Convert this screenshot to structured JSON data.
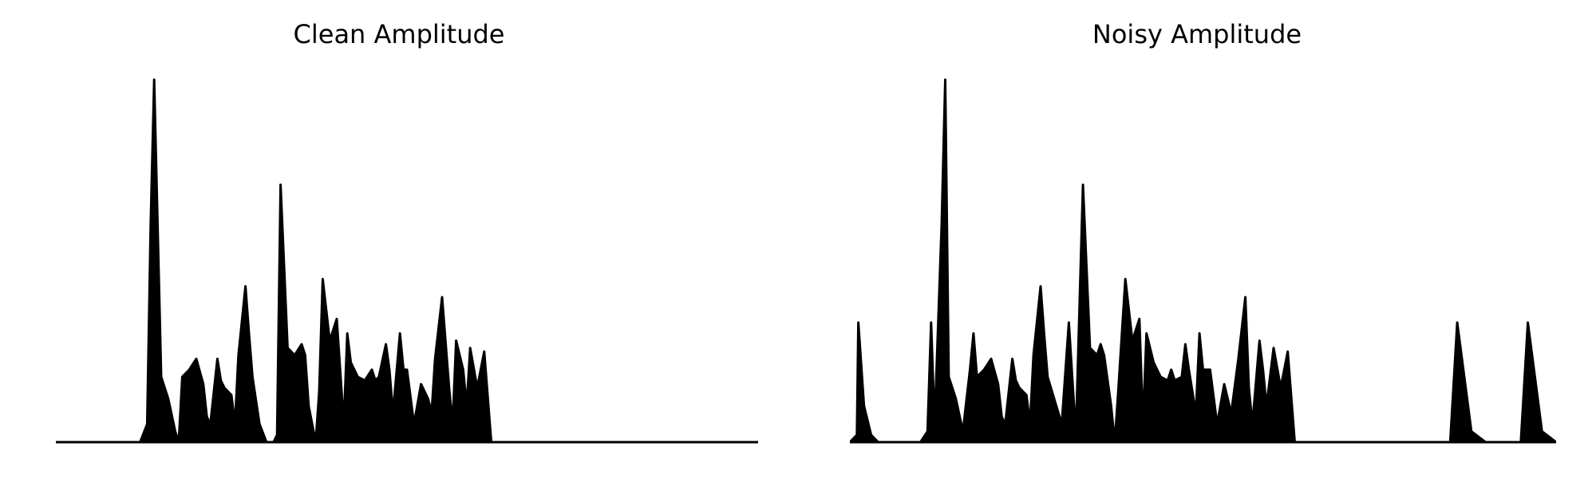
{
  "figure": {
    "layout": "1x2"
  },
  "chart_data": [
    {
      "type": "area",
      "title": "Clean Amplitude",
      "xlabel": "",
      "ylabel": "",
      "axes_visible": false,
      "grid": false,
      "color": "#000000",
      "ylim": [
        0,
        1.0
      ],
      "x": [
        0.0,
        0.12,
        0.13,
        0.135,
        0.14,
        0.15,
        0.16,
        0.17,
        0.175,
        0.18,
        0.19,
        0.2,
        0.21,
        0.215,
        0.22,
        0.23,
        0.235,
        0.24,
        0.25,
        0.255,
        0.26,
        0.27,
        0.275,
        0.28,
        0.29,
        0.3,
        0.31,
        0.315,
        0.32,
        0.33,
        0.34,
        0.35,
        0.355,
        0.36,
        0.37,
        0.375,
        0.38,
        0.39,
        0.4,
        0.41,
        0.415,
        0.42,
        0.43,
        0.44,
        0.45,
        0.455,
        0.46,
        0.47,
        0.475,
        0.48,
        0.49,
        0.495,
        0.5,
        0.51,
        0.52,
        0.53,
        0.535,
        0.54,
        0.55,
        0.56,
        0.565,
        0.57,
        0.58,
        0.585,
        0.59,
        0.6,
        0.61,
        0.62,
        0.63,
        0.635,
        0.64,
        0.65,
        0.66,
        0.665,
        0.67,
        0.68,
        0.69,
        0.695,
        0.7,
        0.71,
        0.72,
        0.73,
        0.74,
        0.75,
        0.76,
        0.77,
        0.78,
        0.79,
        0.8,
        0.9,
        1.0
      ],
      "y": [
        0.0,
        0.0,
        0.05,
        0.6,
        1.0,
        0.18,
        0.12,
        0.03,
        0.0,
        0.18,
        0.2,
        0.23,
        0.16,
        0.07,
        0.05,
        0.23,
        0.17,
        0.15,
        0.13,
        0.05,
        0.24,
        0.43,
        0.3,
        0.18,
        0.05,
        0.0,
        0.0,
        0.02,
        0.71,
        0.26,
        0.24,
        0.27,
        0.24,
        0.1,
        0.0,
        0.14,
        0.45,
        0.28,
        0.34,
        0.05,
        0.3,
        0.22,
        0.18,
        0.17,
        0.2,
        0.17,
        0.18,
        0.27,
        0.2,
        0.08,
        0.3,
        0.2,
        0.2,
        0.05,
        0.16,
        0.12,
        0.08,
        0.23,
        0.4,
        0.15,
        0.05,
        0.28,
        0.2,
        0.1,
        0.26,
        0.15,
        0.25,
        0.0,
        0.0,
        0.0,
        0.0,
        0.0,
        0.0,
        0.0,
        0.0,
        0.0,
        0.0,
        0.0,
        0.0,
        0.0,
        0.0,
        0.0,
        0.0,
        0.0,
        0.0,
        0.0,
        0.0,
        0.0,
        0.0,
        0.0,
        0.0
      ]
    },
    {
      "type": "area",
      "title": "Noisy Amplitude",
      "xlabel": "",
      "ylabel": "",
      "axes_visible": false,
      "grid": false,
      "color": "#000000",
      "ylim": [
        0,
        1.0
      ],
      "x": [
        0.0,
        0.01,
        0.012,
        0.02,
        0.03,
        0.04,
        0.05,
        0.1,
        0.11,
        0.115,
        0.12,
        0.13,
        0.135,
        0.14,
        0.15,
        0.16,
        0.17,
        0.175,
        0.18,
        0.19,
        0.2,
        0.21,
        0.215,
        0.22,
        0.23,
        0.235,
        0.24,
        0.25,
        0.255,
        0.26,
        0.27,
        0.275,
        0.28,
        0.3,
        0.31,
        0.32,
        0.33,
        0.34,
        0.35,
        0.355,
        0.36,
        0.37,
        0.375,
        0.38,
        0.39,
        0.4,
        0.41,
        0.415,
        0.42,
        0.43,
        0.44,
        0.45,
        0.455,
        0.46,
        0.47,
        0.475,
        0.48,
        0.49,
        0.495,
        0.5,
        0.51,
        0.52,
        0.53,
        0.535,
        0.54,
        0.55,
        0.56,
        0.565,
        0.57,
        0.58,
        0.585,
        0.59,
        0.6,
        0.61,
        0.62,
        0.63,
        0.635,
        0.64,
        0.65,
        0.66,
        0.665,
        0.67,
        0.68,
        0.69,
        0.695,
        0.7,
        0.71,
        0.72,
        0.73,
        0.74,
        0.75,
        0.76,
        0.77,
        0.78,
        0.79,
        0.8,
        0.85,
        0.86,
        0.88,
        0.9,
        0.92,
        0.95,
        0.96,
        0.98,
        1.0
      ],
      "y": [
        0.0,
        0.02,
        0.33,
        0.1,
        0.02,
        0.0,
        0.0,
        0.0,
        0.03,
        0.33,
        0.05,
        0.6,
        1.0,
        0.18,
        0.12,
        0.03,
        0.2,
        0.3,
        0.18,
        0.2,
        0.23,
        0.16,
        0.07,
        0.05,
        0.23,
        0.17,
        0.15,
        0.13,
        0.05,
        0.24,
        0.43,
        0.3,
        0.18,
        0.05,
        0.33,
        0.02,
        0.71,
        0.26,
        0.24,
        0.27,
        0.24,
        0.1,
        0.0,
        0.14,
        0.45,
        0.28,
        0.34,
        0.05,
        0.3,
        0.22,
        0.18,
        0.17,
        0.2,
        0.17,
        0.18,
        0.27,
        0.2,
        0.08,
        0.3,
        0.2,
        0.2,
        0.05,
        0.16,
        0.12,
        0.08,
        0.23,
        0.4,
        0.15,
        0.05,
        0.28,
        0.2,
        0.1,
        0.26,
        0.15,
        0.25,
        0.0,
        0.0,
        0.0,
        0.0,
        0.0,
        0.0,
        0.0,
        0.0,
        0.0,
        0.0,
        0.0,
        0.0,
        0.0,
        0.0,
        0.0,
        0.0,
        0.0,
        0.0,
        0.0,
        0.0,
        0.0,
        0.0,
        0.33,
        0.03,
        0.0,
        0.0,
        0.0,
        0.33,
        0.03,
        0.0
      ]
    }
  ]
}
